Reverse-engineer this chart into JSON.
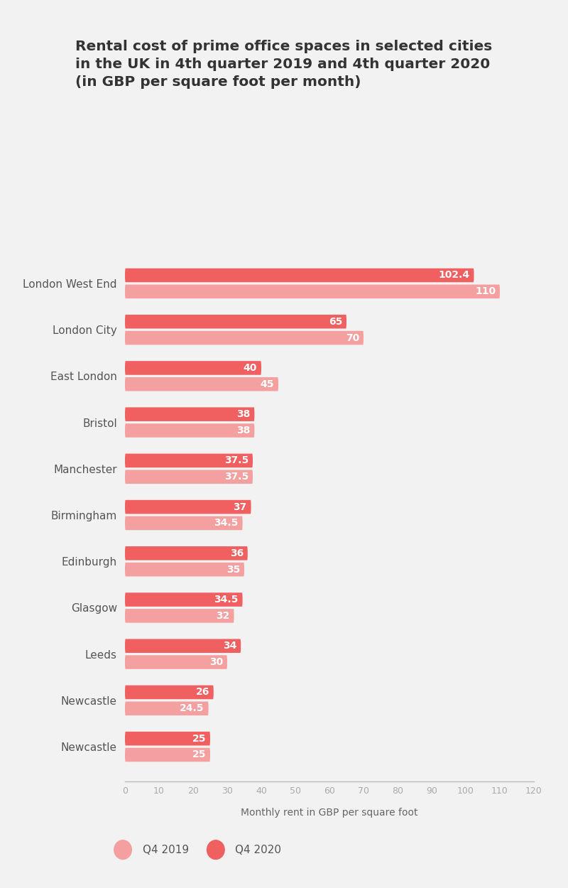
{
  "title": "Rental cost of prime office spaces in selected cities\nin the UK in 4th quarter 2019 and 4th quarter 2020\n(in GBP per square foot per month)",
  "cities": [
    "London West End",
    "London City",
    "East London",
    "Bristol",
    "Manchester",
    "Birmingham",
    "Edinburgh",
    "Glasgow",
    "Leeds",
    "Newcastle",
    "Newcastle"
  ],
  "q2020": [
    102.4,
    65,
    40,
    38,
    37.5,
    37,
    36,
    34.5,
    34,
    26,
    25
  ],
  "q2019": [
    110,
    70,
    45,
    38,
    37.5,
    34.5,
    35,
    32,
    30,
    24.5,
    25
  ],
  "color_2020": "#f06060",
  "color_2019": "#f5a0a0",
  "xlabel": "Monthly rent in GBP per square foot",
  "xlim": [
    0,
    120
  ],
  "xticks": [
    0,
    10,
    20,
    30,
    40,
    50,
    60,
    70,
    80,
    90,
    100,
    110,
    120
  ],
  "background_color": "#f2f2f2",
  "title_fontsize": 14.5,
  "label_fontsize": 11,
  "value_fontsize": 10,
  "xlabel_fontsize": 10,
  "legend_label_2019": "Q4 2019",
  "legend_label_2020": "Q4 2020"
}
